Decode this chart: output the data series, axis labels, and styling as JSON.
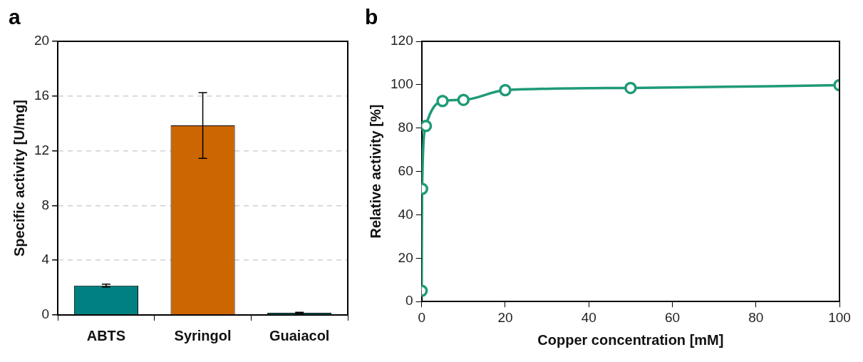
{
  "chart_data": [
    {
      "type": "bar",
      "title": "a",
      "ylabel": "Specific activity [U/mg]",
      "categories": [
        "ABTS",
        "Syringol",
        "Guaiacol"
      ],
      "values": [
        2.15,
        13.85,
        0.15
      ],
      "colors": [
        "#008080",
        "#cc6600",
        "#008080"
      ],
      "errors": [
        0.1,
        2.4,
        0.05
      ],
      "ylim": [
        0,
        20
      ],
      "yticks": [
        0,
        4,
        8,
        12,
        16,
        20
      ],
      "grid": "y",
      "legend": false
    },
    {
      "type": "line",
      "title": "b",
      "xlabel": "Copper concentration [mM]",
      "ylabel": "Relative activity [%]",
      "x": [
        0,
        0.1,
        1,
        5,
        10,
        20,
        50,
        100
      ],
      "series": [
        {
          "color": "#1f9a78",
          "values": [
            5,
            52,
            81,
            92.5,
            93,
            97.5,
            98.5,
            99.8
          ]
        }
      ],
      "xlim": [
        0,
        100
      ],
      "xticks": [
        0,
        20,
        40,
        60,
        80,
        100
      ],
      "ylim": [
        0,
        120
      ],
      "yticks": [
        0,
        20,
        40,
        60,
        80,
        100,
        120
      ],
      "grid": false,
      "legend": false,
      "marker": "circle",
      "line_style": "solid"
    }
  ]
}
